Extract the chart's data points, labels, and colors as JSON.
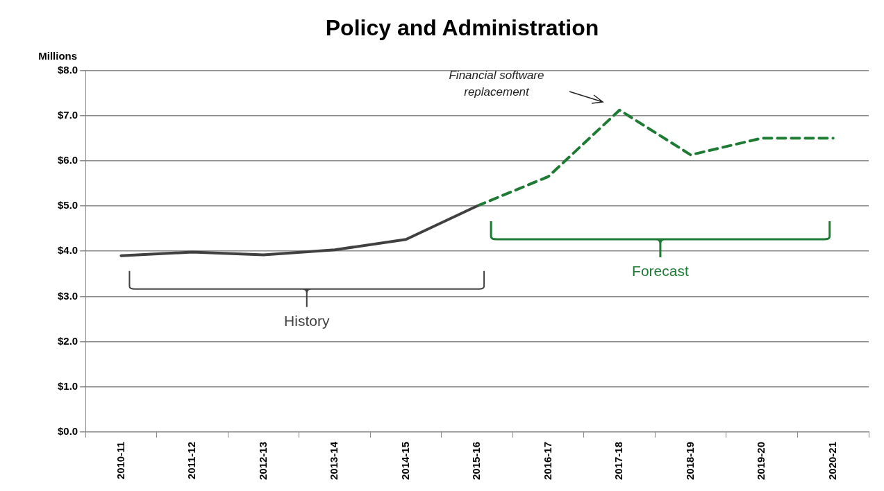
{
  "chart_data": {
    "type": "line",
    "title": "Policy and Administration",
    "ylabel": "Millions",
    "categories": [
      "2010-11",
      "2011-12",
      "2012-13",
      "2013-14",
      "2014-15",
      "2015-16",
      "2016-17",
      "2017-18",
      "2018-19",
      "2019-20",
      "2020-21"
    ],
    "series": [
      {
        "name": "History",
        "color": "#404040",
        "line_style": "solid",
        "values": [
          3.9,
          3.98,
          3.92,
          4.03,
          4.26,
          5.0,
          null,
          null,
          null,
          null,
          null
        ]
      },
      {
        "name": "Forecast",
        "color": "#1e7b34",
        "line_style": "dashed",
        "values": [
          null,
          null,
          null,
          null,
          null,
          5.0,
          5.65,
          7.12,
          6.13,
          6.5,
          6.5
        ]
      }
    ],
    "ylim": [
      0,
      8
    ],
    "yticks": [
      {
        "value": 0,
        "label": "$0.0"
      },
      {
        "value": 1,
        "label": "$1.0"
      },
      {
        "value": 2,
        "label": "$2.0"
      },
      {
        "value": 3,
        "label": "$3.0"
      },
      {
        "value": 4,
        "label": "$4.0"
      },
      {
        "value": 5,
        "label": "$5.0"
      },
      {
        "value": 6,
        "label": "$6.0"
      },
      {
        "value": 7,
        "label": "$7.0"
      },
      {
        "value": 8,
        "label": "$8.0"
      }
    ],
    "grid": "y",
    "legend": false,
    "marker": "none",
    "annotations": [
      "Financial software replacement"
    ]
  }
}
